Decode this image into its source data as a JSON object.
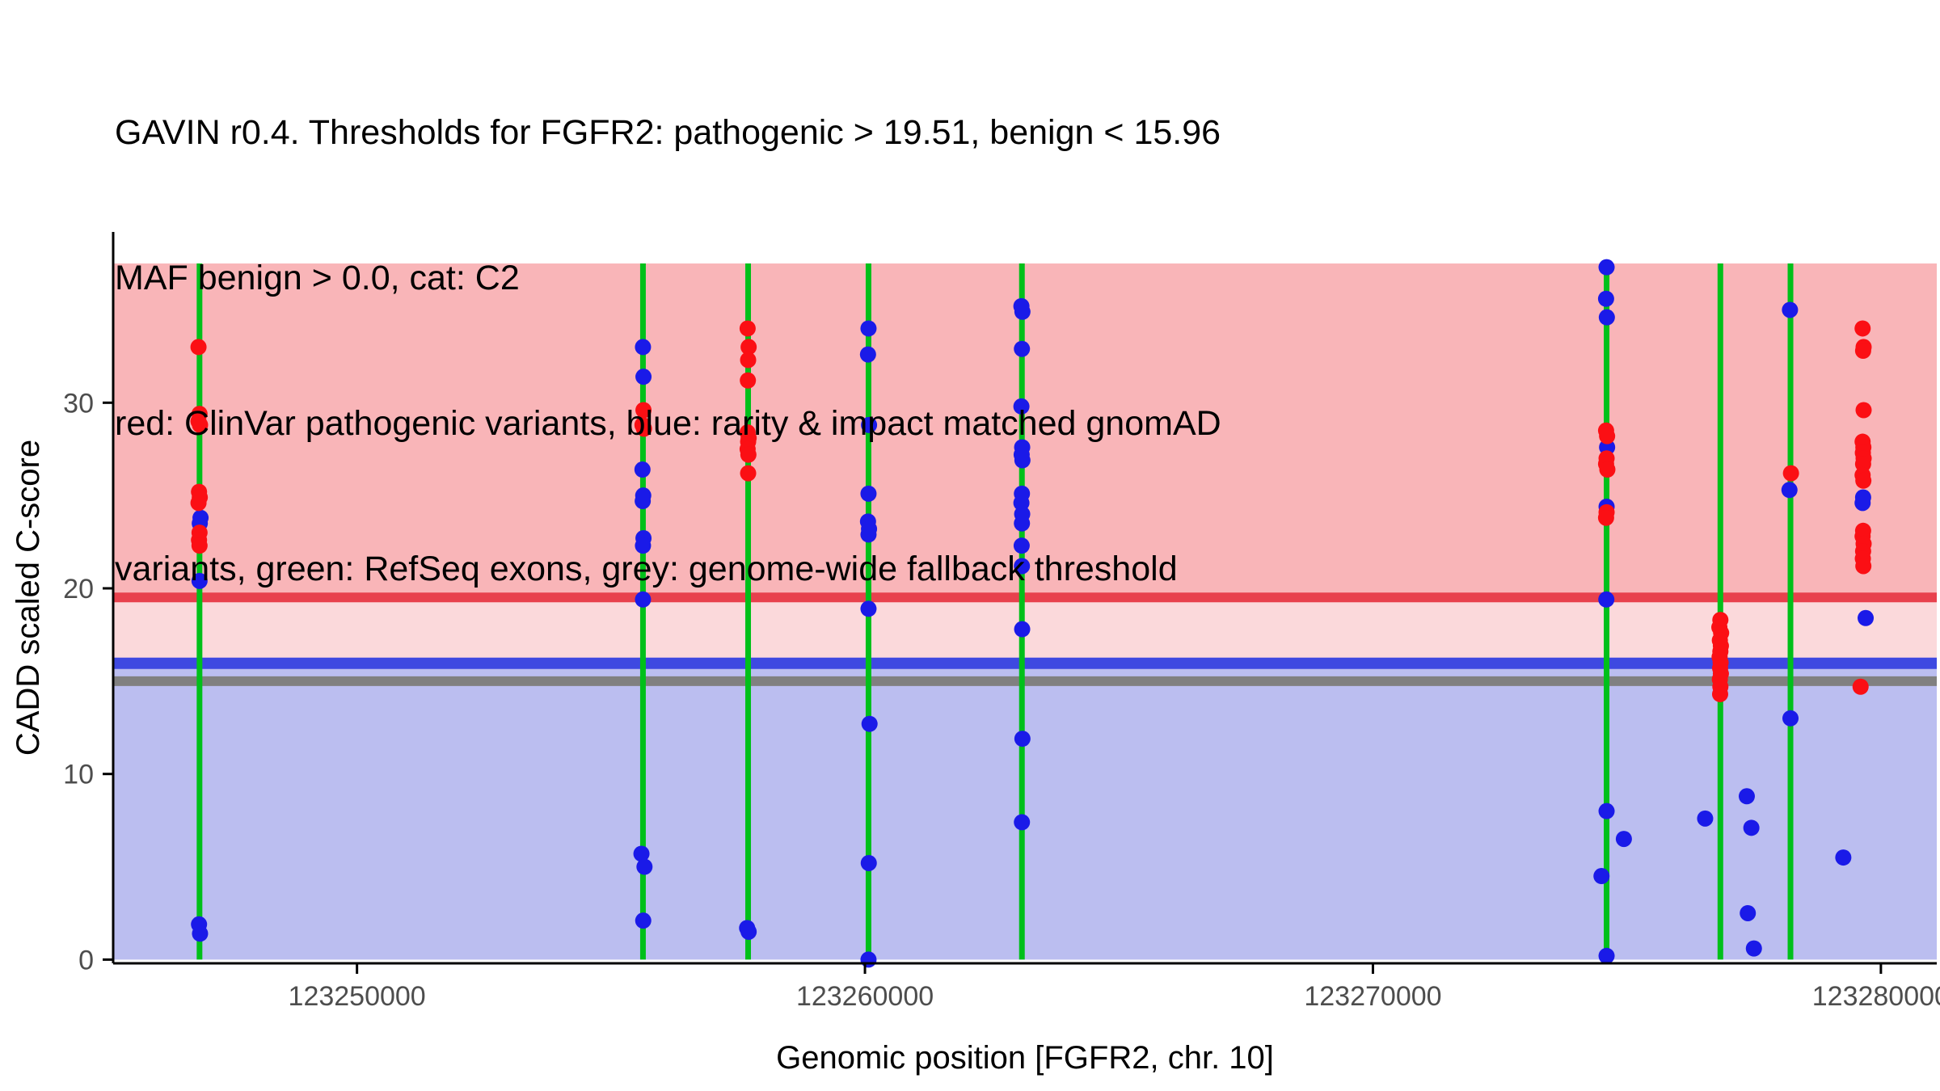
{
  "title_lines": [
    "GAVIN r0.4. Thresholds for FGFR2: pathogenic > 19.51, benign < 15.96",
    "MAF benign > 0.0, cat: C2",
    "red: ClinVar pathogenic variants, blue: rarity & impact matched gnomAD",
    "variants, green: RefSeq exons, grey: genome-wide fallback threshold"
  ],
  "chart_data": {
    "type": "scatter",
    "title": "GAVIN r0.4. Thresholds for FGFR2: pathogenic > 19.51, benign < 15.96",
    "xlabel": "Genomic position [FGFR2, chr. 10]",
    "ylabel": "CADD scaled C-score",
    "xlim": [
      123245200,
      123281100
    ],
    "ylim": [
      -0.2,
      39.2
    ],
    "x_ticks": [
      123250000,
      123260000,
      123270000,
      123280000
    ],
    "x_tick_labels": [
      "123250000",
      "123260000",
      "123270000",
      "123280000"
    ],
    "y_ticks": [
      0,
      10,
      20,
      30
    ],
    "y_tick_labels": [
      "0",
      "10",
      "20",
      "30"
    ],
    "grid": false,
    "legend_position": "none",
    "band_top": 37.5,
    "band_bottom": 0,
    "thresholds": {
      "pathogenic": 19.51,
      "benign": 15.96,
      "fallback": 15.0
    },
    "exons": [
      123246900,
      123255630,
      123257700,
      123260070,
      123263090,
      123274600,
      123276840,
      123278220
    ],
    "colors": {
      "band_pathogenic": "#F9B5B8",
      "band_intermediate": "#FBD9DB",
      "band_benign": "#BBBEF0",
      "line_pathogenic": "#E8414D",
      "line_benign": "#3E49E1",
      "line_fallback": "#808080",
      "exon": "#00C01A",
      "clinvar": "#FB0F14",
      "gnomad": "#1A1AE8",
      "axis": "#000000",
      "tick_label": "#4D4D4D"
    },
    "series": [
      {
        "id": "gnomad-matched",
        "name": "rarity & impact matched gnomAD variants",
        "color": "#1A1AE8",
        "points": [
          [
            123246920,
            23.8
          ],
          [
            123246905,
            23.5
          ],
          [
            123246900,
            20.4
          ],
          [
            123246890,
            1.9
          ],
          [
            123246910,
            1.4
          ],
          [
            123255630,
            33.0
          ],
          [
            123255640,
            31.4
          ],
          [
            123255620,
            26.4
          ],
          [
            123255635,
            25.0
          ],
          [
            123255625,
            24.7
          ],
          [
            123255640,
            22.7
          ],
          [
            123255630,
            22.3
          ],
          [
            123255630,
            19.4
          ],
          [
            123255600,
            5.7
          ],
          [
            123255660,
            5.0
          ],
          [
            123255635,
            2.1
          ],
          [
            123257680,
            1.7
          ],
          [
            123257710,
            1.5
          ],
          [
            123260070,
            34.0
          ],
          [
            123260060,
            32.6
          ],
          [
            123260080,
            28.8
          ],
          [
            123260070,
            25.1
          ],
          [
            123260060,
            23.6
          ],
          [
            123260080,
            23.2
          ],
          [
            123260070,
            22.9
          ],
          [
            123260070,
            18.9
          ],
          [
            123260090,
            12.7
          ],
          [
            123260075,
            5.2
          ],
          [
            123260070,
            0.0
          ],
          [
            123263080,
            35.2
          ],
          [
            123263100,
            34.9
          ],
          [
            123263090,
            32.9
          ],
          [
            123263080,
            29.8
          ],
          [
            123263095,
            27.6
          ],
          [
            123263085,
            27.2
          ],
          [
            123263100,
            26.9
          ],
          [
            123263090,
            25.1
          ],
          [
            123263080,
            24.6
          ],
          [
            123263095,
            24.0
          ],
          [
            123263090,
            23.5
          ],
          [
            123263085,
            22.3
          ],
          [
            123263090,
            21.2
          ],
          [
            123263095,
            17.8
          ],
          [
            123263100,
            11.9
          ],
          [
            123263090,
            7.4
          ],
          [
            123274600,
            37.3
          ],
          [
            123274590,
            35.6
          ],
          [
            123274605,
            34.6
          ],
          [
            123274610,
            27.6
          ],
          [
            123274600,
            24.4
          ],
          [
            123274595,
            19.4
          ],
          [
            123274600,
            8.0
          ],
          [
            123274940,
            6.5
          ],
          [
            123274500,
            4.5
          ],
          [
            123274600,
            0.2
          ],
          [
            123276540,
            7.6
          ],
          [
            123277360,
            8.8
          ],
          [
            123277450,
            7.1
          ],
          [
            123277380,
            2.5
          ],
          [
            123277500,
            0.6
          ],
          [
            123278210,
            35.0
          ],
          [
            123278200,
            25.3
          ],
          [
            123278220,
            13.0
          ],
          [
            123279260,
            5.5
          ],
          [
            123279650,
            24.9
          ],
          [
            123279640,
            24.6
          ],
          [
            123279700,
            18.4
          ]
        ]
      },
      {
        "id": "clinvar-pathogenic",
        "name": "ClinVar pathogenic variants",
        "color": "#FB0F14",
        "points": [
          [
            123246880,
            33.0
          ],
          [
            123246900,
            29.4
          ],
          [
            123246880,
            29.0
          ],
          [
            123246910,
            28.8
          ],
          [
            123246890,
            25.2
          ],
          [
            123246905,
            24.9
          ],
          [
            123246880,
            24.6
          ],
          [
            123246900,
            23.0
          ],
          [
            123246890,
            22.6
          ],
          [
            123246900,
            22.3
          ],
          [
            123255640,
            29.6
          ],
          [
            123255620,
            28.8
          ],
          [
            123255650,
            28.6
          ],
          [
            123257690,
            34.0
          ],
          [
            123257710,
            33.0
          ],
          [
            123257700,
            32.3
          ],
          [
            123257695,
            31.2
          ],
          [
            123257690,
            28.4
          ],
          [
            123257710,
            28.1
          ],
          [
            123257700,
            27.9
          ],
          [
            123257690,
            27.5
          ],
          [
            123257705,
            27.2
          ],
          [
            123257700,
            26.2
          ],
          [
            123274590,
            28.5
          ],
          [
            123274610,
            28.2
          ],
          [
            123274600,
            27.0
          ],
          [
            123274590,
            26.7
          ],
          [
            123274615,
            26.4
          ],
          [
            123274600,
            24.1
          ],
          [
            123274590,
            23.8
          ],
          [
            123276840,
            18.3
          ],
          [
            123276820,
            17.9
          ],
          [
            123276855,
            17.6
          ],
          [
            123276830,
            17.2
          ],
          [
            123276850,
            16.9
          ],
          [
            123276840,
            16.6
          ],
          [
            123276825,
            16.3
          ],
          [
            123276845,
            16.0
          ],
          [
            123276835,
            15.7
          ],
          [
            123276850,
            15.4
          ],
          [
            123276830,
            15.1
          ],
          [
            123276840,
            14.7
          ],
          [
            123276835,
            14.3
          ],
          [
            123278230,
            26.2
          ],
          [
            123279640,
            34.0
          ],
          [
            123279660,
            33.0
          ],
          [
            123279650,
            32.8
          ],
          [
            123279660,
            29.6
          ],
          [
            123279640,
            27.9
          ],
          [
            123279655,
            27.6
          ],
          [
            123279645,
            27.3
          ],
          [
            123279660,
            27.0
          ],
          [
            123279650,
            26.7
          ],
          [
            123279640,
            26.1
          ],
          [
            123279655,
            25.8
          ],
          [
            123279650,
            23.1
          ],
          [
            123279640,
            22.8
          ],
          [
            123279660,
            22.4
          ],
          [
            123279650,
            22.0
          ],
          [
            123279645,
            21.6
          ],
          [
            123279655,
            21.2
          ],
          [
            123279600,
            14.7
          ]
        ]
      }
    ]
  }
}
